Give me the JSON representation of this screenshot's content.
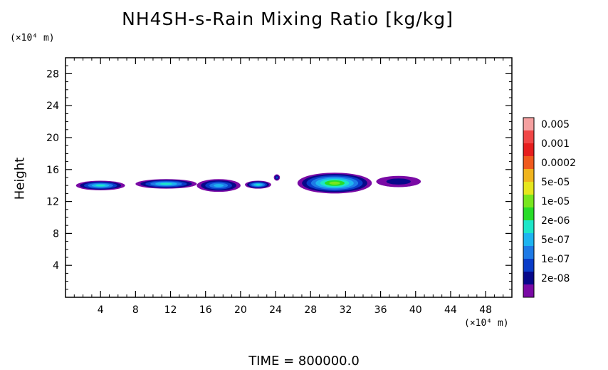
{
  "chart_data": {
    "type": "heatmap",
    "title": "NH4SH-s-Rain Mixing Ratio [kg/kg]",
    "ylabel": "Height",
    "xunit": "(×10⁴ m)",
    "yunit": "(×10⁴ m)",
    "footer": "TIME = 800000.0",
    "xlim": [
      0,
      51
    ],
    "ylim": [
      0,
      30
    ],
    "xticks": [
      "4",
      "8",
      "12",
      "16",
      "20",
      "24",
      "28",
      "32",
      "36",
      "40",
      "44",
      "48"
    ],
    "xtick_values": [
      4,
      8,
      12,
      16,
      20,
      24,
      28,
      32,
      36,
      40,
      44,
      48
    ],
    "yticks": [
      "4",
      "8",
      "12",
      "16",
      "20",
      "24",
      "28"
    ],
    "ytick_values": [
      4,
      8,
      12,
      16,
      20,
      24,
      28
    ],
    "colorbar": {
      "colors": [
        "#7a0aa5",
        "#08088a",
        "#0a3cc8",
        "#1e7ae6",
        "#1eb4f0",
        "#1ee6c8",
        "#28dc28",
        "#78e61e",
        "#e6e61e",
        "#f0b41e",
        "#f05a1e",
        "#e61e1e",
        "#f04646",
        "#f5a0a0"
      ],
      "labels": [
        "2e-08",
        "1e-07",
        "5e-07",
        "2e-06",
        "1e-05",
        "5e-05",
        "0.0002",
        "0.001",
        "0.005"
      ]
    },
    "features": [
      {
        "x": [
          1.2,
          6.8
        ],
        "y": [
          13.4,
          14.6
        ],
        "level": 5
      },
      {
        "x": [
          8,
          15
        ],
        "y": [
          13.6,
          14.8
        ],
        "level": 5
      },
      {
        "x": [
          15,
          20
        ],
        "y": [
          13.2,
          14.8
        ],
        "level": 4
      },
      {
        "x": [
          20.5,
          23.5
        ],
        "y": [
          13.6,
          14.6
        ],
        "level": 5
      },
      {
        "x": [
          23.8,
          24.5
        ],
        "y": [
          14.6,
          15.4
        ],
        "level": 2
      },
      {
        "x": [
          26.5,
          35
        ],
        "y": [
          13,
          15.6
        ],
        "level": 7
      },
      {
        "x": [
          35.5,
          40.6
        ],
        "y": [
          13.8,
          15.2
        ],
        "level": 1
      }
    ]
  }
}
